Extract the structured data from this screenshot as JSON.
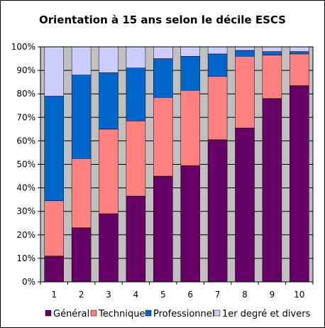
{
  "chart_data": {
    "type": "bar",
    "stacked": true,
    "percent_stacked": true,
    "title": "Orientation à 15 ans selon le décile ESCS",
    "xlabel": "",
    "ylabel": "",
    "categories": [
      "1",
      "2",
      "3",
      "4",
      "5",
      "6",
      "7",
      "8",
      "9",
      "10"
    ],
    "y_ticks": [
      "0%",
      "10%",
      "20%",
      "30%",
      "40%",
      "50%",
      "60%",
      "70%",
      "80%",
      "90%",
      "100%"
    ],
    "ylim": [
      0,
      100
    ],
    "grid": true,
    "legend_position": "bottom",
    "series": [
      {
        "name": "Général",
        "color": "#660066",
        "values": [
          11,
          23,
          29,
          36.5,
          45,
          49.5,
          60.5,
          65.5,
          78,
          83.5
        ]
      },
      {
        "name": "Technique",
        "color": "#ff8080",
        "values": [
          23.5,
          29.5,
          36,
          32,
          33.5,
          32,
          27,
          30.5,
          18.5,
          13.5
        ]
      },
      {
        "name": "Professionnel",
        "color": "#0066cc",
        "values": [
          44.5,
          35.5,
          24,
          22.5,
          16.5,
          14.5,
          9.5,
          2.5,
          1.5,
          1
        ]
      },
      {
        "name": "1er degré et divers",
        "color": "#ccccff",
        "values": [
          21,
          12,
          11,
          9,
          5,
          4,
          3,
          1.5,
          2,
          2
        ]
      }
    ]
  }
}
